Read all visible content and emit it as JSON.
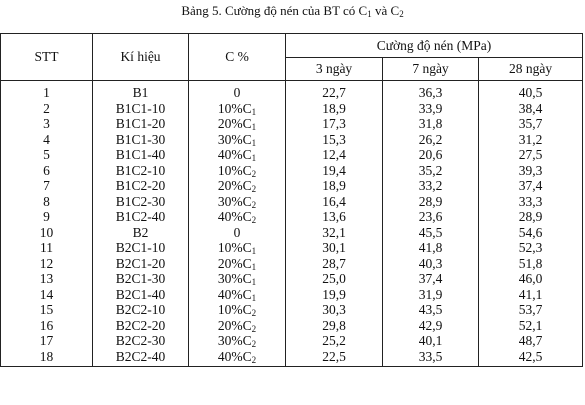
{
  "caption": {
    "prefix": "Bảng 5. Cường độ nén của BT có C",
    "sub1": "1",
    "middle": " và C",
    "sub2": "2"
  },
  "headers": {
    "stt": "STT",
    "symbol": "Kí hiệu",
    "c_percent": "C %",
    "strength": "Cường độ nén (MPa)",
    "days": [
      "3 ngày",
      "7 ngày",
      "28 ngày"
    ]
  },
  "rows": [
    {
      "stt": "1",
      "symbol": "B1",
      "c": "0",
      "c_sub": "",
      "d3": "22,7",
      "d7": "36,3",
      "d28": "40,5"
    },
    {
      "stt": "2",
      "symbol": "B1C1-10",
      "c": "10%C",
      "c_sub": "1",
      "d3": "18,9",
      "d7": "33,9",
      "d28": "38,4"
    },
    {
      "stt": "3",
      "symbol": "B1C1-20",
      "c": "20%C",
      "c_sub": "1",
      "d3": "17,3",
      "d7": "31,8",
      "d28": "35,7"
    },
    {
      "stt": "4",
      "symbol": "B1C1-30",
      "c": "30%C",
      "c_sub": "1",
      "d3": "15,3",
      "d7": "26,2",
      "d28": "31,2"
    },
    {
      "stt": "5",
      "symbol": "B1C1-40",
      "c": "40%C",
      "c_sub": "1",
      "d3": "12,4",
      "d7": "20,6",
      "d28": "27,5"
    },
    {
      "stt": "6",
      "symbol": "B1C2-10",
      "c": "10%C",
      "c_sub": "2",
      "d3": "19,4",
      "d7": "35,2",
      "d28": "39,3"
    },
    {
      "stt": "7",
      "symbol": "B1C2-20",
      "c": "20%C",
      "c_sub": "2",
      "d3": "18,9",
      "d7": "33,2",
      "d28": "37,4"
    },
    {
      "stt": "8",
      "symbol": "B1C2-30",
      "c": "30%C",
      "c_sub": "2",
      "d3": "16,4",
      "d7": "28,9",
      "d28": "33,3"
    },
    {
      "stt": "9",
      "symbol": "B1C2-40",
      "c": "40%C",
      "c_sub": "2",
      "d3": "13,6",
      "d7": "23,6",
      "d28": "28,9"
    },
    {
      "stt": "10",
      "symbol": "B2",
      "c": "0",
      "c_sub": "",
      "d3": "32,1",
      "d7": "45,5",
      "d28": "54,6"
    },
    {
      "stt": "11",
      "symbol": "B2C1-10",
      "c": "10%C",
      "c_sub": "1",
      "d3": "30,1",
      "d7": "41,8",
      "d28": "52,3"
    },
    {
      "stt": "12",
      "symbol": "B2C1-20",
      "c": "20%C",
      "c_sub": "1",
      "d3": "28,7",
      "d7": "40,3",
      "d28": "51,8"
    },
    {
      "stt": "13",
      "symbol": "B2C1-30",
      "c": "30%C",
      "c_sub": "1",
      "d3": "25,0",
      "d7": "37,4",
      "d28": "46,0"
    },
    {
      "stt": "14",
      "symbol": "B2C1-40",
      "c": "40%C",
      "c_sub": "1",
      "d3": "19,9",
      "d7": "31,9",
      "d28": "41,1"
    },
    {
      "stt": "15",
      "symbol": "B2C2-10",
      "c": "10%C",
      "c_sub": "2",
      "d3": "30,3",
      "d7": "43,5",
      "d28": "53,7"
    },
    {
      "stt": "16",
      "symbol": "B2C2-20",
      "c": "20%C",
      "c_sub": "2",
      "d3": "29,8",
      "d7": "42,9",
      "d28": "52,1"
    },
    {
      "stt": "17",
      "symbol": "B2C2-30",
      "c": "30%C",
      "c_sub": "2",
      "d3": "25,2",
      "d7": "40,1",
      "d28": "48,7"
    },
    {
      "stt": "18",
      "symbol": "B2C2-40",
      "c": "40%C",
      "c_sub": "2",
      "d3": "22,5",
      "d7": "33,5",
      "d28": "42,5"
    }
  ]
}
